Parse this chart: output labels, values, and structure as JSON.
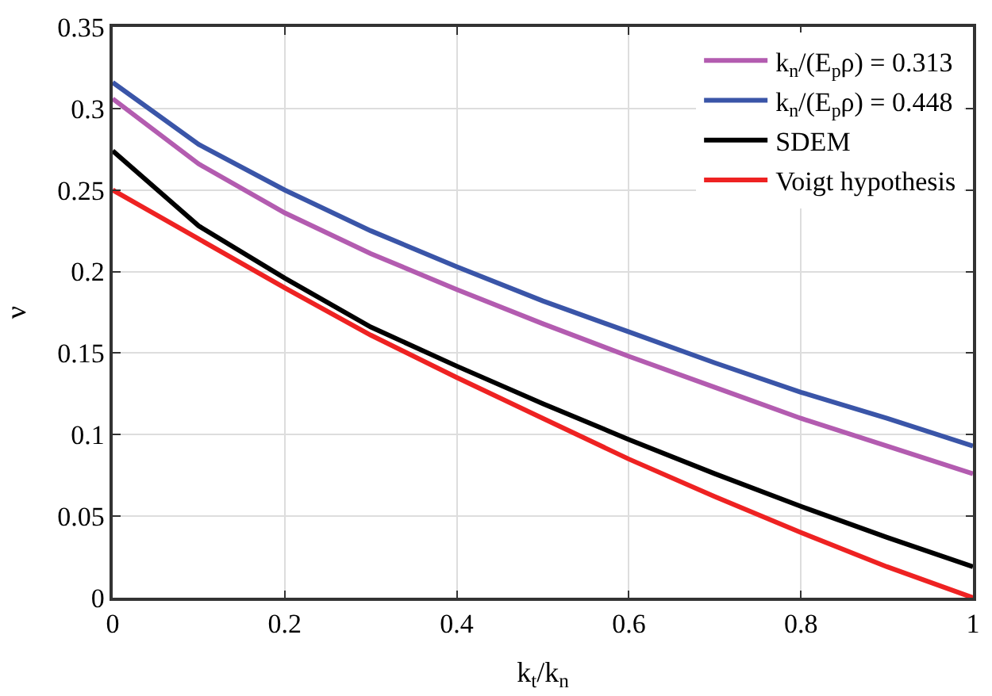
{
  "chart_data": {
    "type": "line",
    "xlabel": "k$_{t}$/k$_{n}$",
    "ylabel": "ν",
    "x": [
      0,
      0.1,
      0.2,
      0.3,
      0.4,
      0.5,
      0.6,
      0.7,
      0.8,
      0.9,
      1
    ],
    "series": [
      {
        "name": "k$_{n}$/(E$_{p}$ρ) = 0.313",
        "color": "#b35cb0",
        "values": [
          0.306,
          0.266,
          0.236,
          0.211,
          0.189,
          0.168,
          0.148,
          0.129,
          0.11,
          0.093,
          0.076
        ]
      },
      {
        "name": "k$_{n}$/(E$_{p}$ρ) = 0.448",
        "color": "#3a55a8",
        "values": [
          0.316,
          0.278,
          0.25,
          0.225,
          0.203,
          0.182,
          0.163,
          0.144,
          0.126,
          0.11,
          0.093
        ]
      },
      {
        "name": "SDEM",
        "color": "#000000",
        "values": [
          0.274,
          0.228,
          0.196,
          0.166,
          0.142,
          0.119,
          0.097,
          0.076,
          0.056,
          0.037,
          0.019
        ]
      },
      {
        "name": "Voigt hypothesis",
        "color": "#ee2222",
        "values": [
          0.25,
          0.22,
          0.19,
          0.161,
          0.135,
          0.11,
          0.085,
          0.062,
          0.04,
          0.019,
          0.0
        ]
      }
    ],
    "xlim": [
      0,
      1
    ],
    "xticks": [
      0,
      0.2,
      0.4,
      0.6,
      0.8,
      1
    ],
    "ylim": [
      0,
      0.35
    ],
    "yticks": [
      0,
      0.05,
      0.1,
      0.15,
      0.2,
      0.25,
      0.3,
      0.35
    ],
    "grid": true,
    "legend": "top right",
    "marker": "none",
    "line_style": "solid"
  }
}
